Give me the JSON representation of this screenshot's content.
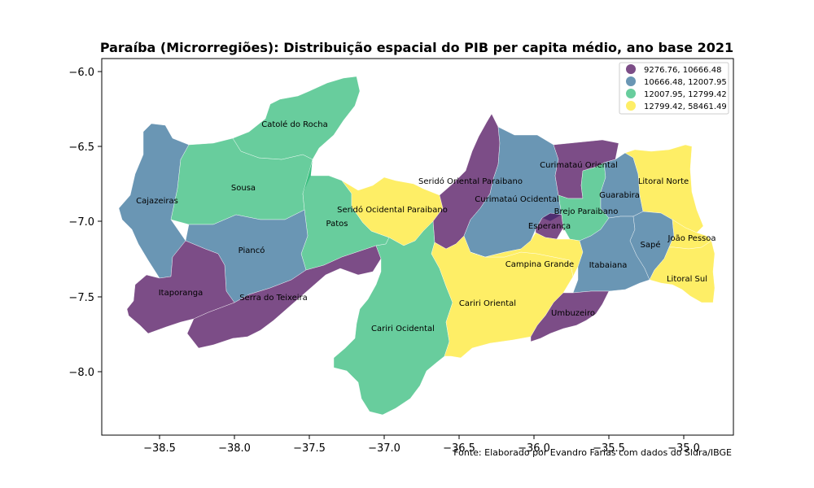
{
  "title": "Paraíba (Microrregiões): Distribuição espacial do PIB per capita médio, ano base 2021",
  "source": "Fonte: Elaborado por Evandro Farias com dados do Sidra/IBGE",
  "colors": {
    "class1": "#440154",
    "class2": "#2b6a94",
    "class3": "#28b873",
    "class4": "#fde725"
  },
  "legend": [
    {
      "label": "9276.76, 10666.48",
      "class": "class1"
    },
    {
      "label": "10666.48, 12007.95",
      "class": "class2"
    },
    {
      "label": "12007.95, 12799.42",
      "class": "class3"
    },
    {
      "label": "12799.42, 58461.49",
      "class": "class4"
    }
  ],
  "axes": {
    "x_ticks": [
      "−38.5",
      "−38.0",
      "−37.5",
      "−37.0",
      "−36.5",
      "−36.0",
      "−35.5",
      "−35.0"
    ],
    "y_ticks": [
      "−6.0",
      "−6.5",
      "−7.0",
      "−7.5",
      "−8.0"
    ]
  },
  "regions": [
    {
      "name": "Catolé do Rocha",
      "class": "class3"
    },
    {
      "name": "Cajazeiras",
      "class": "class2"
    },
    {
      "name": "Sousa",
      "class": "class3"
    },
    {
      "name": "Patos",
      "class": "class3"
    },
    {
      "name": "Piancó",
      "class": "class2"
    },
    {
      "name": "Itaporanga",
      "class": "class1"
    },
    {
      "name": "Serra do Teixeira",
      "class": "class1"
    },
    {
      "name": "Seridó Ocidental Paraibano",
      "class": "class4"
    },
    {
      "name": "Seridó Oriental Paraibano",
      "class": "class1"
    },
    {
      "name": "Cariri Ocidental",
      "class": "class3"
    },
    {
      "name": "Cariri Oriental",
      "class": "class4"
    },
    {
      "name": "Curimataú Ocidental",
      "class": "class2"
    },
    {
      "name": "Curimataú Oriental",
      "class": "class1"
    },
    {
      "name": "Esperança",
      "class": "class1"
    },
    {
      "name": "Brejo Paraibano",
      "class": "class3"
    },
    {
      "name": "Guarabira",
      "class": "class2"
    },
    {
      "name": "Campina Grande",
      "class": "class4"
    },
    {
      "name": "Itabaiana",
      "class": "class2"
    },
    {
      "name": "Umbuzeiro",
      "class": "class1"
    },
    {
      "name": "Litoral Norte",
      "class": "class4"
    },
    {
      "name": "Sapé",
      "class": "class2"
    },
    {
      "name": "João Pessoa",
      "class": "class4"
    },
    {
      "name": "Litoral Sul",
      "class": "class4"
    }
  ]
}
